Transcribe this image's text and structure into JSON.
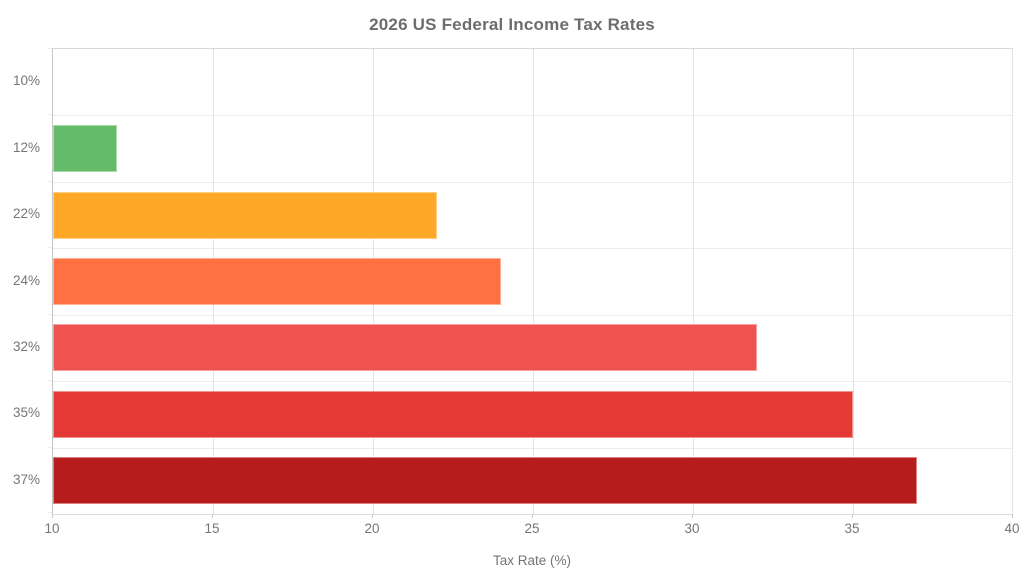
{
  "chart_data": {
    "type": "bar",
    "orientation": "horizontal",
    "title": "2026 US Federal Income Tax Rates",
    "xlabel": "Tax Rate (%)",
    "ylabel": "",
    "categories": [
      "10%",
      "12%",
      "22%",
      "24%",
      "32%",
      "35%",
      "37%"
    ],
    "values": [
      10,
      12,
      22,
      24,
      32,
      35,
      37
    ],
    "bar_colors": [
      null,
      "#66BB6A",
      "#FFA726",
      "#FF7043",
      "#EF5350",
      "#E53935",
      "#B71C1C"
    ],
    "xlim": [
      10,
      40
    ],
    "xticks": [
      "10",
      "15",
      "20",
      "25",
      "30",
      "35",
      "40"
    ],
    "xtick_values": [
      10,
      15,
      20,
      25,
      30,
      35,
      40
    ],
    "grid": true,
    "legend": "none",
    "styles": {
      "background": "#ffffff",
      "title_color": "#6d6d6d",
      "label_color": "#757575",
      "gridline_color": "#e3e3e3",
      "axis_line_color": "#c9c9c9",
      "band_line_color": "#ececec",
      "bar_border_color": "rgba(255,255,255,0.45)"
    }
  }
}
